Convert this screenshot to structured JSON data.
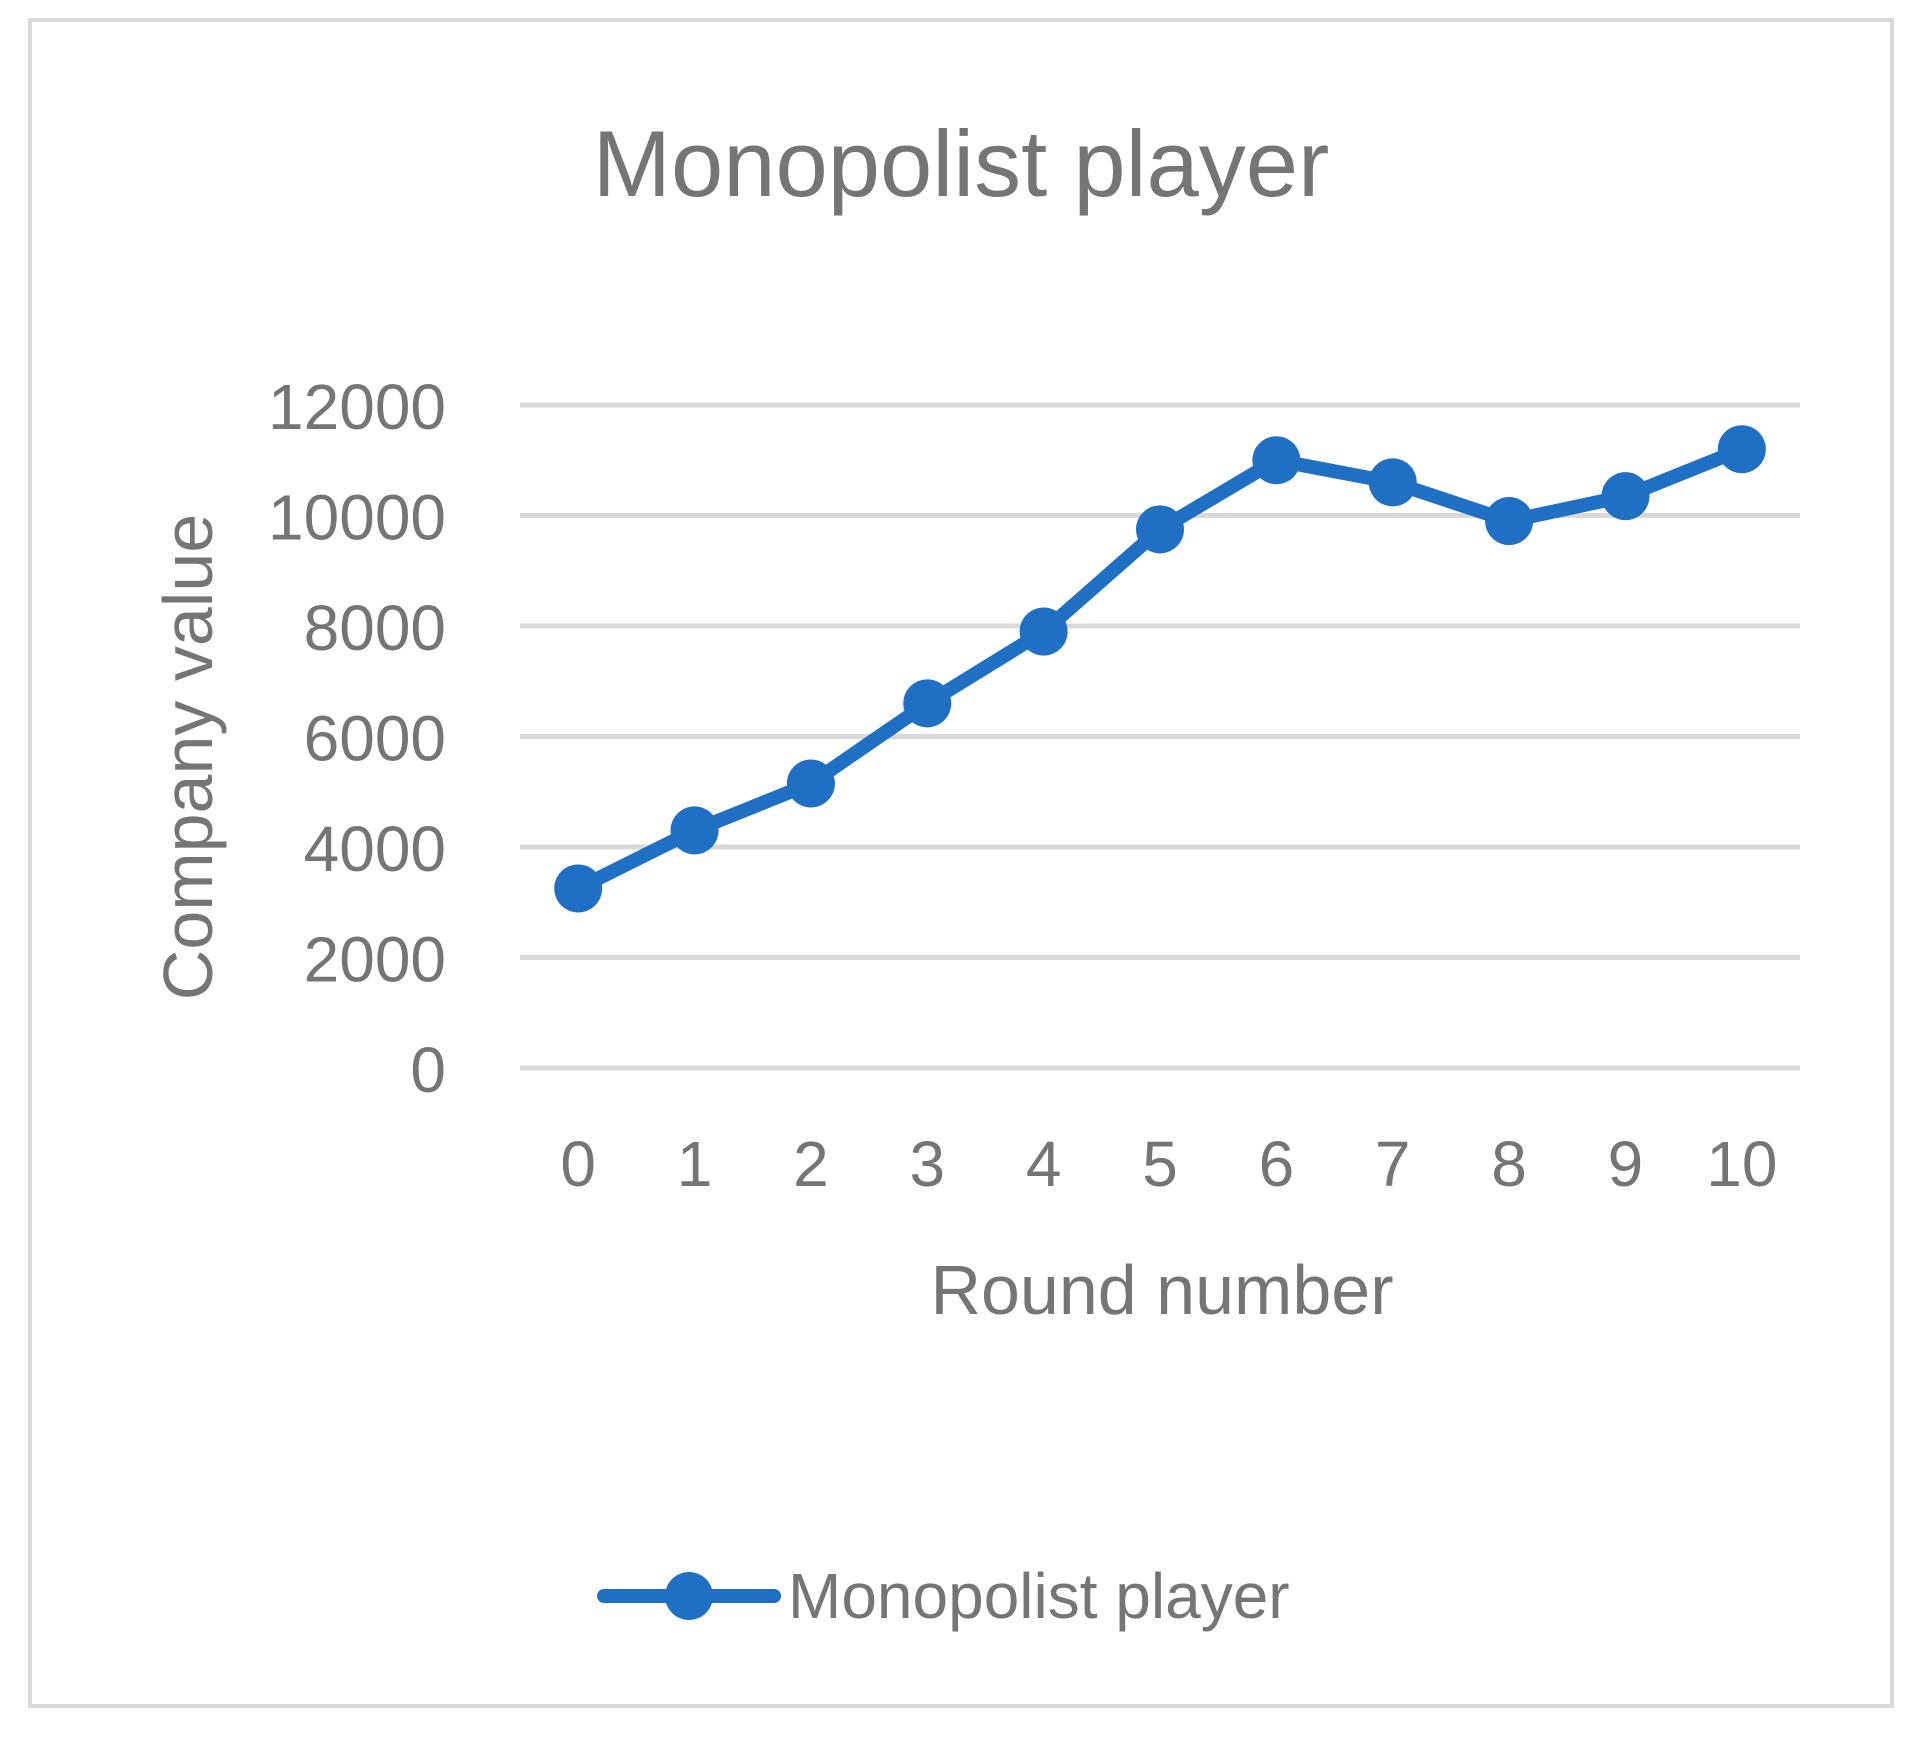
{
  "chart_data": {
    "type": "line",
    "title": "Monopolist player",
    "xlabel": "Round number",
    "ylabel": "Company value",
    "categories": [
      "0",
      "1",
      "2",
      "3",
      "4",
      "5",
      "6",
      "7",
      "8",
      "9",
      "10"
    ],
    "y_ticks": [
      "0",
      "2000",
      "4000",
      "6000",
      "8000",
      "10000",
      "12000"
    ],
    "ylim": [
      0,
      12000
    ],
    "grid": true,
    "legend_position": "bottom",
    "series": [
      {
        "name": "Monopolist player",
        "color": "#1f6fc5",
        "marker": "circle",
        "values": [
          3250,
          4300,
          5150,
          6600,
          7900,
          9750,
          11000,
          10600,
          9900,
          10350,
          11200
        ]
      }
    ]
  }
}
